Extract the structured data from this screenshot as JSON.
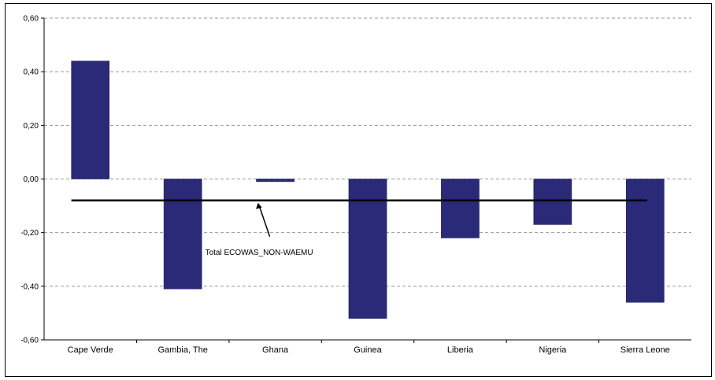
{
  "chart_data": {
    "type": "bar",
    "categories": [
      "Cape Verde",
      "Gambia, The",
      "Ghana",
      "Guinea",
      "Liberia",
      "Nigeria",
      "Sierra Leone"
    ],
    "values": [
      0.44,
      -0.41,
      -0.01,
      -0.52,
      -0.22,
      -0.17,
      -0.46
    ],
    "ylim": [
      -0.6,
      0.6
    ],
    "yticks": [
      0.6,
      0.4,
      0.2,
      0.0,
      -0.2,
      -0.4,
      -0.6
    ],
    "ytick_labels": [
      "0,60",
      "0,40",
      "0,20",
      "0,00",
      "-0,20",
      "-0,40",
      "-0,60"
    ],
    "grid": true,
    "reference_line": {
      "label": "Total ECOWAS_NON-WAEMU",
      "value": -0.08
    },
    "colors": {
      "bar": "#2a2a78",
      "reference_line": "#000000",
      "grid": "#999999"
    }
  }
}
